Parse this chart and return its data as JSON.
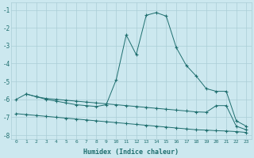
{
  "xlabel": "Humidex (Indice chaleur)",
  "background_color": "#cce8ef",
  "grid_color": "#aacdd6",
  "line_color": "#1e6e6e",
  "xlim": [
    -0.5,
    23.5
  ],
  "ylim": [
    -8.2,
    -0.6
  ],
  "yticks": [
    -8,
    -7,
    -6,
    -5,
    -4,
    -3,
    -2,
    -1
  ],
  "xticks": [
    0,
    1,
    2,
    3,
    4,
    5,
    6,
    7,
    8,
    9,
    10,
    11,
    12,
    13,
    14,
    15,
    16,
    17,
    18,
    19,
    20,
    21,
    22,
    23
  ],
  "series": [
    {
      "x": [
        0,
        1,
        2,
        3,
        4,
        5,
        6,
        7,
        8,
        9,
        10,
        11,
        12,
        13,
        14,
        15,
        16,
        17,
        18,
        19,
        20,
        21,
        22,
        23
      ],
      "y": [
        -6.8,
        -6.85,
        -6.9,
        -6.95,
        -7.0,
        -7.05,
        -7.1,
        -7.15,
        -7.2,
        -7.25,
        -7.3,
        -7.35,
        -7.4,
        -7.45,
        -7.5,
        -7.55,
        -7.6,
        -7.65,
        -7.7,
        -7.72,
        -7.75,
        -7.77,
        -7.8,
        -7.85
      ]
    },
    {
      "x": [
        0,
        1,
        2,
        3,
        4,
        5,
        6,
        7,
        8,
        9,
        10,
        11,
        12,
        13,
        14,
        15,
        16,
        17,
        18,
        19,
        20,
        21,
        22,
        23
      ],
      "y": [
        -6.0,
        -5.7,
        -5.85,
        -6.0,
        -6.1,
        -6.2,
        -6.3,
        -6.35,
        -6.4,
        -6.3,
        -4.9,
        -2.4,
        -3.5,
        -1.3,
        -1.15,
        -1.35,
        -3.1,
        -4.1,
        -4.7,
        -5.4,
        -5.55,
        -5.55,
        -7.2,
        -7.5
      ]
    },
    {
      "x": [
        1,
        2,
        3,
        4,
        5,
        6,
        7,
        8,
        9,
        10,
        11,
        12,
        13,
        14,
        15,
        16,
        17,
        18,
        19,
        20,
        21,
        22,
        23
      ],
      "y": [
        -5.7,
        -5.85,
        -5.95,
        -6.0,
        -6.05,
        -6.1,
        -6.15,
        -6.2,
        -6.25,
        -6.3,
        -6.35,
        -6.4,
        -6.45,
        -6.5,
        -6.55,
        -6.6,
        -6.65,
        -6.7,
        -6.72,
        -6.35,
        -6.35,
        -7.5,
        -7.7
      ]
    }
  ]
}
